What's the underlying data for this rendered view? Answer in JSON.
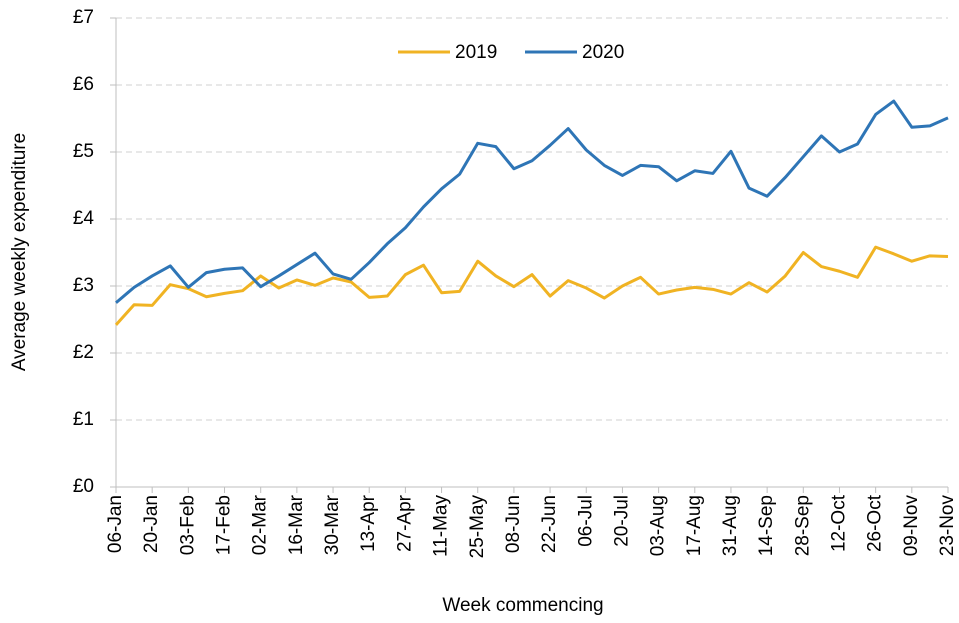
{
  "chart_data": {
    "type": "line",
    "x_label": "Week commencing",
    "y_label": "Average weekly expenditure",
    "categories": [
      "06-Jan",
      null,
      "20-Jan",
      null,
      "03-Feb",
      null,
      "17-Feb",
      null,
      "02-Mar",
      null,
      "16-Mar",
      null,
      "30-Mar",
      null,
      "13-Apr",
      null,
      "27-Apr",
      null,
      "11-May",
      null,
      "25-May",
      null,
      "08-Jun",
      null,
      "22-Jun",
      null,
      "06-Jul",
      null,
      "20-Jul",
      null,
      "03-Aug",
      null,
      "17-Aug",
      null,
      "31-Aug",
      null,
      "14-Sep",
      null,
      "28-Sep",
      null,
      "12-Oct",
      null,
      "26-Oct",
      null,
      "09-Nov",
      null,
      "23-Nov"
    ],
    "series": [
      {
        "name": "2019",
        "color": "#f0b323",
        "values": [
          2.42,
          2.72,
          2.71,
          3.02,
          2.96,
          2.84,
          2.89,
          2.93,
          3.15,
          2.97,
          3.09,
          3.01,
          3.12,
          3.06,
          2.83,
          2.85,
          3.17,
          3.31,
          2.9,
          2.92,
          3.37,
          3.15,
          2.99,
          3.17,
          2.85,
          3.08,
          2.97,
          2.82,
          3.0,
          3.13,
          2.88,
          2.94,
          2.98,
          2.95,
          2.88,
          3.05,
          2.91,
          3.15,
          3.5,
          3.29,
          3.22,
          3.13,
          3.58,
          3.48,
          3.37,
          3.45,
          3.44
        ]
      },
      {
        "name": "2020",
        "color": "#2e75b6",
        "values": [
          2.75,
          2.98,
          3.15,
          3.3,
          2.98,
          3.2,
          3.25,
          3.27,
          2.99,
          3.15,
          3.32,
          3.49,
          3.18,
          3.1,
          3.35,
          3.63,
          3.87,
          4.18,
          4.45,
          4.67,
          5.13,
          5.08,
          4.75,
          4.87,
          5.1,
          5.35,
          5.03,
          4.8,
          4.65,
          4.8,
          4.78,
          4.57,
          4.72,
          4.68,
          5.01,
          4.46,
          4.34,
          4.62,
          4.93,
          5.24,
          5.0,
          5.12,
          5.56,
          5.76,
          5.37,
          5.39,
          5.51
        ]
      }
    ],
    "ylim": [
      0,
      7
    ],
    "yticks": [
      {
        "value": 0,
        "label": "£0"
      },
      {
        "value": 1,
        "label": "£1"
      },
      {
        "value": 2,
        "label": "£2"
      },
      {
        "value": 3,
        "label": "£3"
      },
      {
        "value": 4,
        "label": "£4"
      },
      {
        "value": 5,
        "label": "£5"
      },
      {
        "value": 6,
        "label": "£6"
      },
      {
        "value": 7,
        "label": "£7"
      }
    ],
    "grid": true,
    "legend": "top"
  }
}
